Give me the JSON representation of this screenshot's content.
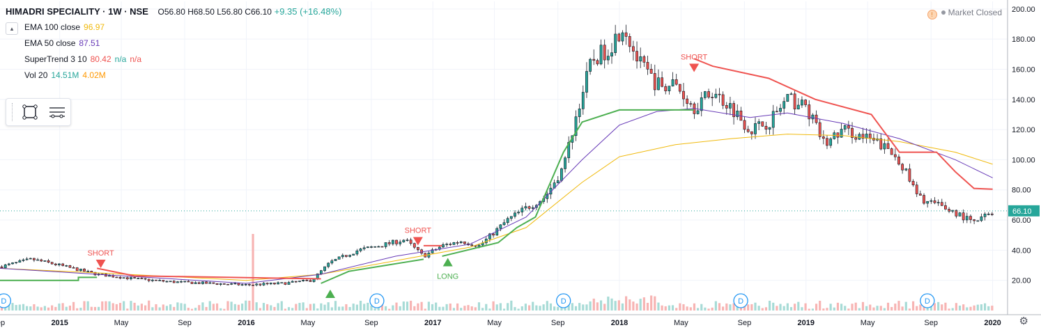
{
  "header": {
    "symbol": "HIMADRI SPECIALITY · 1W · NSE",
    "ohlc": "O56.80  H68.50  L56.80  C66.10",
    "change": "+9.35 (+16.48%)"
  },
  "indicators": [
    {
      "name": "EMA 100 close",
      "values": [
        "96.97"
      ],
      "colors": [
        "#f0b90b"
      ]
    },
    {
      "name": "EMA 50 close",
      "values": [
        "87.51"
      ],
      "colors": [
        "#673ab7"
      ]
    },
    {
      "name": "SuperTrend 3 10",
      "values": [
        "80.42",
        "n/a",
        "n/a"
      ],
      "colors": [
        "#ef5350",
        "#26a69a",
        "#ef5350"
      ]
    },
    {
      "name": "Vol 20",
      "values": [
        "14.51M",
        "4.02M"
      ],
      "colors": [
        "#26a69a",
        "#ff9800"
      ]
    }
  ],
  "market_status": "Market Closed",
  "icons": {
    "collapse": "chevron-up-icon",
    "rect_tool": "rectangle-tool-icon",
    "lines_tool": "horizontal-lines-icon",
    "settings": "gear-icon",
    "clock": "clock-icon"
  },
  "colors": {
    "up": "#26a69a",
    "down": "#ef5350",
    "ema100": "#f0b90b",
    "ema50": "#673ab7",
    "st_up": "#4caf50",
    "st_down": "#ef5350"
  },
  "chart_data": {
    "type": "candlestick",
    "y_axis": {
      "ticks": [
        20,
        40,
        60,
        80,
        100,
        120,
        140,
        160,
        180,
        200
      ],
      "range": [
        0,
        205
      ],
      "labels": [
        "20.00",
        "40.00",
        "60.00",
        "80.00",
        "100.00",
        "120.00",
        "140.00",
        "160.00",
        "180.00",
        "200.00"
      ]
    },
    "x_axis": {
      "labels": [
        "Sep",
        "2015",
        "May",
        "Sep",
        "2016",
        "May",
        "Sep",
        "2017",
        "May",
        "Sep",
        "2018",
        "May",
        "Sep",
        "2019",
        "May",
        "Sep",
        "2020"
      ],
      "dates": [
        2014.67,
        2015.0,
        2015.33,
        2015.67,
        2016.0,
        2016.33,
        2016.67,
        2017.0,
        2017.33,
        2017.67,
        2018.0,
        2018.33,
        2018.67,
        2019.0,
        2019.33,
        2019.67,
        2020.0
      ],
      "range": [
        2014.68,
        2020.08
      ]
    },
    "last_price": {
      "value": 66.1,
      "label": "66.10"
    },
    "price_path": [
      [
        2014.68,
        29
      ],
      [
        2014.85,
        34
      ],
      [
        2015.0,
        30
      ],
      [
        2015.2,
        24
      ],
      [
        2015.4,
        21
      ],
      [
        2015.6,
        19
      ],
      [
        2015.8,
        18
      ],
      [
        2016.0,
        17
      ],
      [
        2016.2,
        18
      ],
      [
        2016.35,
        20
      ],
      [
        2016.45,
        32
      ],
      [
        2016.6,
        40
      ],
      [
        2016.75,
        44
      ],
      [
        2016.85,
        47
      ],
      [
        2016.95,
        36
      ],
      [
        2017.05,
        43
      ],
      [
        2017.15,
        46
      ],
      [
        2017.25,
        43
      ],
      [
        2017.4,
        60
      ],
      [
        2017.5,
        68
      ],
      [
        2017.6,
        75
      ],
      [
        2017.7,
        95
      ],
      [
        2017.78,
        135
      ],
      [
        2017.85,
        165
      ],
      [
        2017.95,
        175
      ],
      [
        2018.02,
        190
      ],
      [
        2018.1,
        165
      ],
      [
        2018.2,
        150
      ],
      [
        2018.3,
        150
      ],
      [
        2018.4,
        135
      ],
      [
        2018.5,
        145
      ],
      [
        2018.6,
        135
      ],
      [
        2018.7,
        120
      ],
      [
        2018.8,
        125
      ],
      [
        2018.9,
        140
      ],
      [
        2019.0,
        135
      ],
      [
        2019.1,
        110
      ],
      [
        2019.2,
        120
      ],
      [
        2019.3,
        115
      ],
      [
        2019.4,
        110
      ],
      [
        2019.5,
        100
      ],
      [
        2019.6,
        75
      ],
      [
        2019.7,
        70
      ],
      [
        2019.8,
        65
      ],
      [
        2019.9,
        58
      ],
      [
        2020.0,
        66
      ]
    ],
    "ema100_path": [
      [
        2014.68,
        28
      ],
      [
        2015.2,
        25
      ],
      [
        2016.0,
        20
      ],
      [
        2016.4,
        24
      ],
      [
        2016.8,
        33
      ],
      [
        2017.2,
        42
      ],
      [
        2017.5,
        55
      ],
      [
        2017.8,
        85
      ],
      [
        2018.0,
        102
      ],
      [
        2018.3,
        110
      ],
      [
        2018.6,
        114
      ],
      [
        2018.9,
        117
      ],
      [
        2019.2,
        116
      ],
      [
        2019.5,
        112
      ],
      [
        2019.8,
        105
      ],
      [
        2020.0,
        97
      ]
    ],
    "ema50_path": [
      [
        2014.68,
        28
      ],
      [
        2015.2,
        24
      ],
      [
        2016.0,
        18
      ],
      [
        2016.4,
        24
      ],
      [
        2016.8,
        36
      ],
      [
        2017.2,
        44
      ],
      [
        2017.5,
        62
      ],
      [
        2017.8,
        100
      ],
      [
        2018.0,
        123
      ],
      [
        2018.2,
        132
      ],
      [
        2018.4,
        134
      ],
      [
        2018.7,
        128
      ],
      [
        2018.9,
        131
      ],
      [
        2019.2,
        124
      ],
      [
        2019.5,
        114
      ],
      [
        2019.8,
        100
      ],
      [
        2020.0,
        88
      ]
    ],
    "supertrend_segments": [
      {
        "dir": "up",
        "points": [
          [
            2014.68,
            20
          ],
          [
            2015.1,
            20
          ],
          [
            2015.1,
            22
          ],
          [
            2015.2,
            22
          ]
        ]
      },
      {
        "dir": "down",
        "points": [
          [
            2015.2,
            28
          ],
          [
            2015.4,
            23
          ],
          [
            2016.4,
            21
          ]
        ]
      },
      {
        "dir": "up",
        "points": [
          [
            2016.4,
            18
          ],
          [
            2016.55,
            26
          ],
          [
            2016.85,
            32
          ],
          [
            2016.95,
            34
          ]
        ]
      },
      {
        "dir": "down",
        "points": [
          [
            2016.95,
            43
          ],
          [
            2017.05,
            43
          ]
        ]
      },
      {
        "dir": "up",
        "points": [
          [
            2017.05,
            36
          ],
          [
            2017.35,
            45
          ],
          [
            2017.45,
            55
          ],
          [
            2017.55,
            62
          ],
          [
            2017.7,
            105
          ],
          [
            2017.8,
            125
          ],
          [
            2018.0,
            133
          ],
          [
            2018.4,
            133
          ]
        ]
      },
      {
        "dir": "down",
        "points": [
          [
            2018.4,
            167
          ],
          [
            2018.5,
            162
          ],
          [
            2018.8,
            154
          ],
          [
            2019.05,
            140
          ],
          [
            2019.35,
            130
          ],
          [
            2019.5,
            105
          ],
          [
            2019.7,
            105
          ],
          [
            2019.8,
            92
          ],
          [
            2019.9,
            81
          ],
          [
            2020.0,
            80.42
          ]
        ]
      }
    ],
    "signals": [
      {
        "type": "SHORT",
        "date": 2015.22,
        "price": 30
      },
      {
        "type": "LONG",
        "date": 2016.45,
        "price": 12
      },
      {
        "type": "SHORT",
        "date": 2016.92,
        "price": 45
      },
      {
        "type": "LONG",
        "date": 2017.08,
        "price": 33
      },
      {
        "type": "SHORT",
        "date": 2018.4,
        "price": 160
      }
    ],
    "dividend_markers": [
      2014.7,
      2016.7,
      2017.7,
      2018.65,
      2019.65
    ],
    "dividend_label": "D",
    "volume": {
      "max_value": 14.51,
      "spike_date": 2016.04,
      "spike_value": 14.51
    }
  }
}
